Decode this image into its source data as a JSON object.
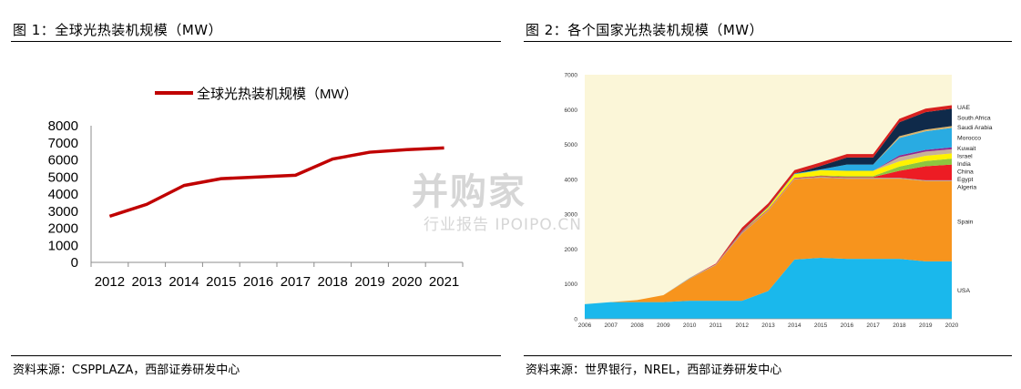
{
  "figure1": {
    "title": "图 1：全球光热装机规模（MW）",
    "source": "资料来源：CSPPLAZA，西部证券研发中心"
  },
  "figure2": {
    "title": "图 2：各个国家光热装机规模（MW）",
    "source": "资料来源：世界银行，NREL，西部证券研发中心"
  },
  "watermark": {
    "main": "并购家",
    "sub": "行业报告 IPOIPO.CN"
  },
  "chart_data": [
    {
      "type": "line",
      "title": "",
      "xlabel": "",
      "ylabel": "",
      "categories": [
        "2012",
        "2013",
        "2014",
        "2015",
        "2016",
        "2017",
        "2018",
        "2019",
        "2020",
        "2021"
      ],
      "series": [
        {
          "name": "全球光热装机规模（MW）",
          "values": [
            2700,
            3400,
            4500,
            4900,
            5000,
            5100,
            6050,
            6450,
            6600,
            6700
          ]
        }
      ],
      "ylim": [
        0,
        8000
      ],
      "yticks": [
        0,
        1000,
        2000,
        3000,
        4000,
        5000,
        6000,
        7000,
        8000
      ],
      "grid": false,
      "legend": "top",
      "color": "#c00000"
    },
    {
      "type": "area",
      "stacked": true,
      "title": "",
      "xlabel": "",
      "ylabel": "",
      "categories": [
        "2006",
        "2007",
        "2008",
        "2009",
        "2010",
        "2011",
        "2012",
        "2013",
        "2014",
        "2015",
        "2016",
        "2017",
        "2018",
        "2019",
        "2020"
      ],
      "ylim": [
        0,
        7000
      ],
      "yticks": [
        0,
        1000,
        2000,
        3000,
        4000,
        5000,
        6000,
        7000
      ],
      "grid": false,
      "legend": "right",
      "background": "#fbf6d8",
      "series": [
        {
          "name": "USA",
          "color": "#1ab8ec",
          "values": [
            420,
            480,
            480,
            480,
            520,
            520,
            520,
            800,
            1700,
            1750,
            1720,
            1720,
            1720,
            1650,
            1650
          ]
        },
        {
          "name": "Spain",
          "color": "#f7941d",
          "values": [
            0,
            0,
            60,
            200,
            630,
            1020,
            1930,
            2300,
            2300,
            2300,
            2300,
            2300,
            2300,
            2300,
            2300
          ]
        },
        {
          "name": "Algeria",
          "color": "#a6a6a6",
          "values": [
            0,
            0,
            0,
            0,
            25,
            25,
            25,
            25,
            25,
            25,
            25,
            25,
            25,
            25,
            25
          ]
        },
        {
          "name": "Egypt",
          "color": "#ed1c24",
          "values": [
            0,
            0,
            0,
            0,
            0,
            20,
            20,
            20,
            20,
            20,
            20,
            20,
            200,
            400,
            450
          ]
        },
        {
          "name": "China",
          "color": "#8dc63f",
          "values": [
            0,
            0,
            0,
            0,
            0,
            0,
            0,
            0,
            0,
            20,
            30,
            30,
            120,
            150,
            170
          ]
        },
        {
          "name": "India",
          "color": "#fff200",
          "values": [
            0,
            0,
            0,
            0,
            0,
            0,
            0,
            50,
            100,
            150,
            150,
            150,
            150,
            150,
            150
          ]
        },
        {
          "name": "Israel",
          "color": "#c7b299",
          "values": [
            0,
            0,
            0,
            0,
            0,
            0,
            0,
            0,
            0,
            0,
            0,
            0,
            121,
            121,
            121
          ]
        },
        {
          "name": "Kuwait",
          "color": "#92278f",
          "values": [
            0,
            0,
            0,
            0,
            0,
            0,
            0,
            0,
            0,
            0,
            0,
            0,
            50,
            50,
            50
          ]
        },
        {
          "name": "Morocco",
          "color": "#29abe2",
          "values": [
            0,
            0,
            0,
            0,
            0,
            0,
            20,
            20,
            20,
            20,
            180,
            180,
            500,
            530,
            560
          ]
        },
        {
          "name": "Saudi Arabia",
          "color": "#d9b36c",
          "values": [
            0,
            0,
            0,
            0,
            0,
            0,
            0,
            0,
            0,
            0,
            0,
            0,
            50,
            50,
            50
          ]
        },
        {
          "name": "South Africa",
          "color": "#0f2a4a",
          "values": [
            0,
            0,
            0,
            0,
            0,
            0,
            0,
            0,
            0,
            100,
            200,
            200,
            400,
            500,
            500
          ]
        },
        {
          "name": "UAE",
          "color": "#d7201f",
          "values": [
            0,
            0,
            0,
            0,
            0,
            0,
            100,
            100,
            100,
            100,
            100,
            100,
            100,
            100,
            100
          ]
        }
      ]
    }
  ]
}
